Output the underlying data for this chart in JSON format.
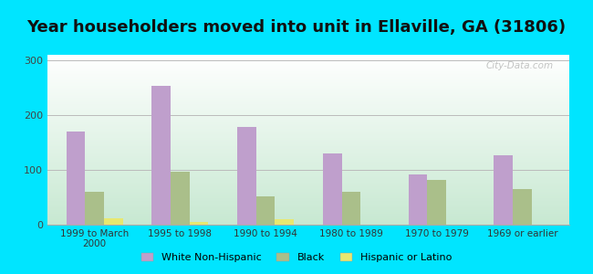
{
  "title": "Year householders moved into unit in Ellaville, GA (31806)",
  "categories": [
    "1999 to March\n2000",
    "1995 to 1998",
    "1990 to 1994",
    "1980 to 1989",
    "1970 to 1979",
    "1969 or earlier"
  ],
  "series": {
    "White Non-Hispanic": [
      170,
      253,
      178,
      130,
      92,
      127
    ],
    "Black": [
      60,
      97,
      52,
      60,
      82,
      65
    ],
    "Hispanic or Latino": [
      12,
      5,
      10,
      0,
      0,
      0
    ]
  },
  "colors": {
    "White Non-Hispanic": "#bf9fcc",
    "Black": "#aabf8a",
    "Hispanic or Latino": "#e8e870"
  },
  "ylim": [
    0,
    310
  ],
  "yticks": [
    0,
    100,
    200,
    300
  ],
  "outer_bg": "#00e5ff",
  "title_fontsize": 13,
  "watermark": "City-Data.com",
  "bar_width": 0.22,
  "grad_top": "#f0f8f4",
  "grad_bottom": "#c8e8d0"
}
